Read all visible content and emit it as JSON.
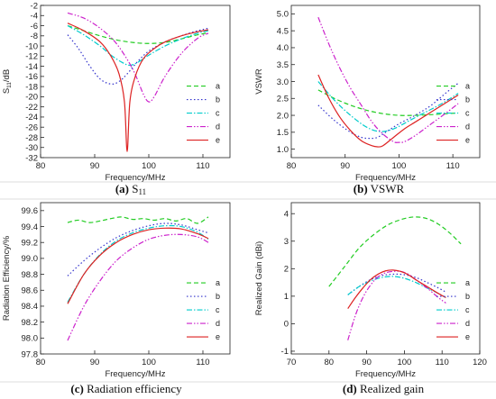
{
  "colors": {
    "a": "#22cc22",
    "b": "#3333cc",
    "c": "#00cccc",
    "d": "#cc22cc",
    "e": "#dd2222"
  },
  "chart_data": [
    {
      "id": "p1",
      "type": "line",
      "caption_tag": "(a)",
      "caption_text": "S",
      "caption_sub": "11",
      "xlabel": "Frequency/MHz",
      "ylabel": "S11/dB",
      "ylabel_main": "S",
      "ylabel_sub": "11",
      "ylabel_tail": "/dB",
      "xlim": [
        80,
        115
      ],
      "ylim": [
        -32,
        -2
      ],
      "xticks": [
        80,
        90,
        100,
        110
      ],
      "yticks": [
        -32,
        -30,
        -28,
        -26,
        -24,
        -22,
        -20,
        -18,
        -16,
        -14,
        -12,
        -10,
        -8,
        -6,
        -4,
        -2
      ],
      "series": [
        {
          "name": "a",
          "x": [
            85,
            88,
            91,
            94,
            97,
            100,
            103,
            106,
            109,
            111
          ],
          "y": [
            -6.0,
            -7.0,
            -8.0,
            -8.8,
            -9.3,
            -9.5,
            -9.3,
            -8.6,
            -7.8,
            -7.4
          ]
        },
        {
          "name": "b",
          "x": [
            85,
            87,
            89,
            91,
            93,
            94.5,
            96,
            98,
            100,
            103,
            106,
            109,
            111
          ],
          "y": [
            -7.8,
            -10.5,
            -13.8,
            -16.5,
            -17.5,
            -17.0,
            -15.5,
            -13.0,
            -11.0,
            -9.2,
            -8.0,
            -7.0,
            -6.5
          ]
        },
        {
          "name": "c",
          "x": [
            85,
            88,
            91,
            93,
            95,
            96.5,
            98,
            100,
            103,
            106,
            109,
            111
          ],
          "y": [
            -6.0,
            -7.8,
            -10.0,
            -11.8,
            -13.2,
            -13.8,
            -13.2,
            -11.8,
            -10.0,
            -8.6,
            -7.5,
            -7.0
          ]
        },
        {
          "name": "d",
          "x": [
            85,
            88,
            91,
            94,
            97,
            99,
            100,
            101,
            103,
            106,
            109,
            111
          ],
          "y": [
            -3.5,
            -4.5,
            -6.5,
            -9.5,
            -14.5,
            -19.5,
            -21.0,
            -20.0,
            -16.0,
            -11.5,
            -8.5,
            -7.5
          ]
        },
        {
          "name": "e",
          "x": [
            85,
            88,
            91,
            93,
            94.5,
            95.5,
            96,
            96.5,
            97.5,
            99,
            101,
            103,
            106,
            109,
            111
          ],
          "y": [
            -5.5,
            -7.0,
            -9.2,
            -12.0,
            -15.5,
            -21.0,
            -30.8,
            -21.0,
            -16.0,
            -12.5,
            -10.5,
            -9.2,
            -8.0,
            -7.2,
            -6.8
          ]
        }
      ],
      "legend_position": "right"
    },
    {
      "id": "p2",
      "type": "line",
      "caption_tag": "(b)",
      "caption_text": "VSWR",
      "xlabel": "Frequency/MHz",
      "ylabel": "VSWR",
      "xlim": [
        80,
        115
      ],
      "ylim": [
        0.75,
        5.25
      ],
      "xticks": [
        80,
        90,
        100,
        110
      ],
      "yticks": [
        1.0,
        1.5,
        2.0,
        2.5,
        3.0,
        3.5,
        4.0,
        4.5,
        5.0
      ],
      "ytick_decimals": 1,
      "series": [
        {
          "name": "a",
          "x": [
            85,
            88,
            91,
            94,
            97,
            100,
            103,
            106,
            109,
            111
          ],
          "y": [
            2.75,
            2.5,
            2.3,
            2.15,
            2.05,
            2.0,
            2.0,
            2.02,
            2.05,
            2.07
          ]
        },
        {
          "name": "b",
          "x": [
            85,
            88,
            91,
            93,
            94.5,
            96,
            98,
            100,
            103,
            106,
            109,
            111
          ],
          "y": [
            2.3,
            1.85,
            1.5,
            1.35,
            1.32,
            1.35,
            1.55,
            1.75,
            2.0,
            2.3,
            2.7,
            2.95
          ]
        },
        {
          "name": "c",
          "x": [
            85,
            88,
            91,
            94,
            96.5,
            99,
            102,
            105,
            108,
            111
          ],
          "y": [
            3.0,
            2.45,
            2.0,
            1.65,
            1.52,
            1.6,
            1.85,
            2.1,
            2.35,
            2.65
          ]
        },
        {
          "name": "d",
          "x": [
            85,
            87,
            89,
            91,
            93,
            95,
            97,
            99,
            100,
            101,
            103,
            106,
            109,
            111
          ],
          "y": [
            4.9,
            4.1,
            3.4,
            2.8,
            2.3,
            1.8,
            1.45,
            1.22,
            1.2,
            1.22,
            1.4,
            1.75,
            2.1,
            2.35
          ]
        },
        {
          "name": "e",
          "x": [
            85,
            87,
            89,
            91,
            93,
            95,
            96,
            97,
            99,
            101,
            103,
            106,
            109,
            111
          ],
          "y": [
            3.2,
            2.5,
            1.95,
            1.55,
            1.25,
            1.1,
            1.07,
            1.1,
            1.35,
            1.6,
            1.8,
            2.1,
            2.4,
            2.6
          ]
        }
      ],
      "legend_position": "right"
    },
    {
      "id": "p3",
      "type": "line",
      "caption_tag": "(c)",
      "caption_text": "Radiation efficiency",
      "xlabel": "Frequency/MHz",
      "ylabel": "Radiation Efficiency/%",
      "xlim": [
        80,
        115
      ],
      "ylim": [
        97.8,
        99.7
      ],
      "xticks": [
        80,
        90,
        100,
        110
      ],
      "yticks": [
        97.8,
        98.0,
        98.2,
        98.4,
        98.6,
        98.8,
        99.0,
        99.2,
        99.4,
        99.6
      ],
      "ytick_decimals": 1,
      "series": [
        {
          "name": "a",
          "x": [
            85,
            87,
            89,
            91,
            93,
            95,
            97,
            99,
            101,
            103,
            105,
            107,
            109,
            111
          ],
          "y": [
            99.45,
            99.48,
            99.45,
            99.47,
            99.5,
            99.52,
            99.49,
            99.5,
            99.48,
            99.5,
            99.47,
            99.5,
            99.44,
            99.52
          ]
        },
        {
          "name": "b",
          "x": [
            85,
            88,
            91,
            94,
            97,
            100,
            103,
            106,
            109,
            111
          ],
          "y": [
            98.78,
            98.97,
            99.13,
            99.26,
            99.35,
            99.41,
            99.44,
            99.42,
            99.36,
            99.32
          ]
        },
        {
          "name": "c",
          "x": [
            85,
            88,
            91,
            94,
            97,
            100,
            103,
            106,
            109,
            111
          ],
          "y": [
            98.45,
            98.8,
            99.05,
            99.22,
            99.32,
            99.38,
            99.41,
            99.4,
            99.33,
            99.24
          ]
        },
        {
          "name": "d",
          "x": [
            85,
            88,
            91,
            94,
            97,
            100,
            103,
            106,
            109,
            111
          ],
          "y": [
            97.97,
            98.4,
            98.72,
            98.97,
            99.13,
            99.24,
            99.29,
            99.3,
            99.27,
            99.2
          ]
        },
        {
          "name": "e",
          "x": [
            85,
            88,
            91,
            94,
            97,
            100,
            103,
            106,
            109,
            111
          ],
          "y": [
            98.43,
            98.8,
            99.04,
            99.2,
            99.3,
            99.36,
            99.38,
            99.37,
            99.31,
            99.25
          ]
        }
      ],
      "legend_position": "right"
    },
    {
      "id": "p4",
      "type": "line",
      "caption_tag": "(d)",
      "caption_text": "Realized gain",
      "xlabel": "Frequency/MHz",
      "ylabel": "Realized Gain (dBi)",
      "xlim": [
        70,
        120
      ],
      "ylim": [
        -1.1,
        4.4
      ],
      "xticks": [
        70,
        80,
        90,
        100,
        110,
        120
      ],
      "yticks": [
        -1,
        0,
        1,
        2,
        3,
        4
      ],
      "series": [
        {
          "name": "a",
          "x": [
            80,
            84,
            88,
            92,
            96,
            100,
            103,
            106,
            109,
            112,
            115
          ],
          "y": [
            1.35,
            2.05,
            2.75,
            3.25,
            3.62,
            3.82,
            3.88,
            3.82,
            3.62,
            3.3,
            2.9
          ]
        },
        {
          "name": "b",
          "x": [
            85,
            88,
            91,
            94,
            97,
            100,
            103,
            106,
            109,
            111
          ],
          "y": [
            1.05,
            1.35,
            1.6,
            1.75,
            1.8,
            1.78,
            1.68,
            1.5,
            1.3,
            1.15
          ]
        },
        {
          "name": "c",
          "x": [
            85,
            88,
            91,
            94,
            97,
            100,
            103,
            106,
            109,
            111
          ],
          "y": [
            1.05,
            1.35,
            1.55,
            1.68,
            1.72,
            1.65,
            1.5,
            1.3,
            1.1,
            0.95
          ]
        },
        {
          "name": "d",
          "x": [
            85,
            87,
            89,
            91,
            93,
            95,
            97,
            99,
            101,
            103,
            106,
            109,
            111
          ],
          "y": [
            -0.6,
            0.3,
            0.95,
            1.4,
            1.7,
            1.85,
            1.9,
            1.9,
            1.8,
            1.6,
            1.3,
            0.95,
            0.75
          ]
        },
        {
          "name": "e",
          "x": [
            85,
            87,
            89,
            91,
            93,
            95,
            97,
            99,
            101,
            103,
            106,
            109,
            111
          ],
          "y": [
            0.55,
            0.95,
            1.3,
            1.6,
            1.8,
            1.92,
            1.95,
            1.9,
            1.78,
            1.6,
            1.35,
            1.1,
            0.95
          ]
        }
      ],
      "legend_position": "right"
    }
  ]
}
